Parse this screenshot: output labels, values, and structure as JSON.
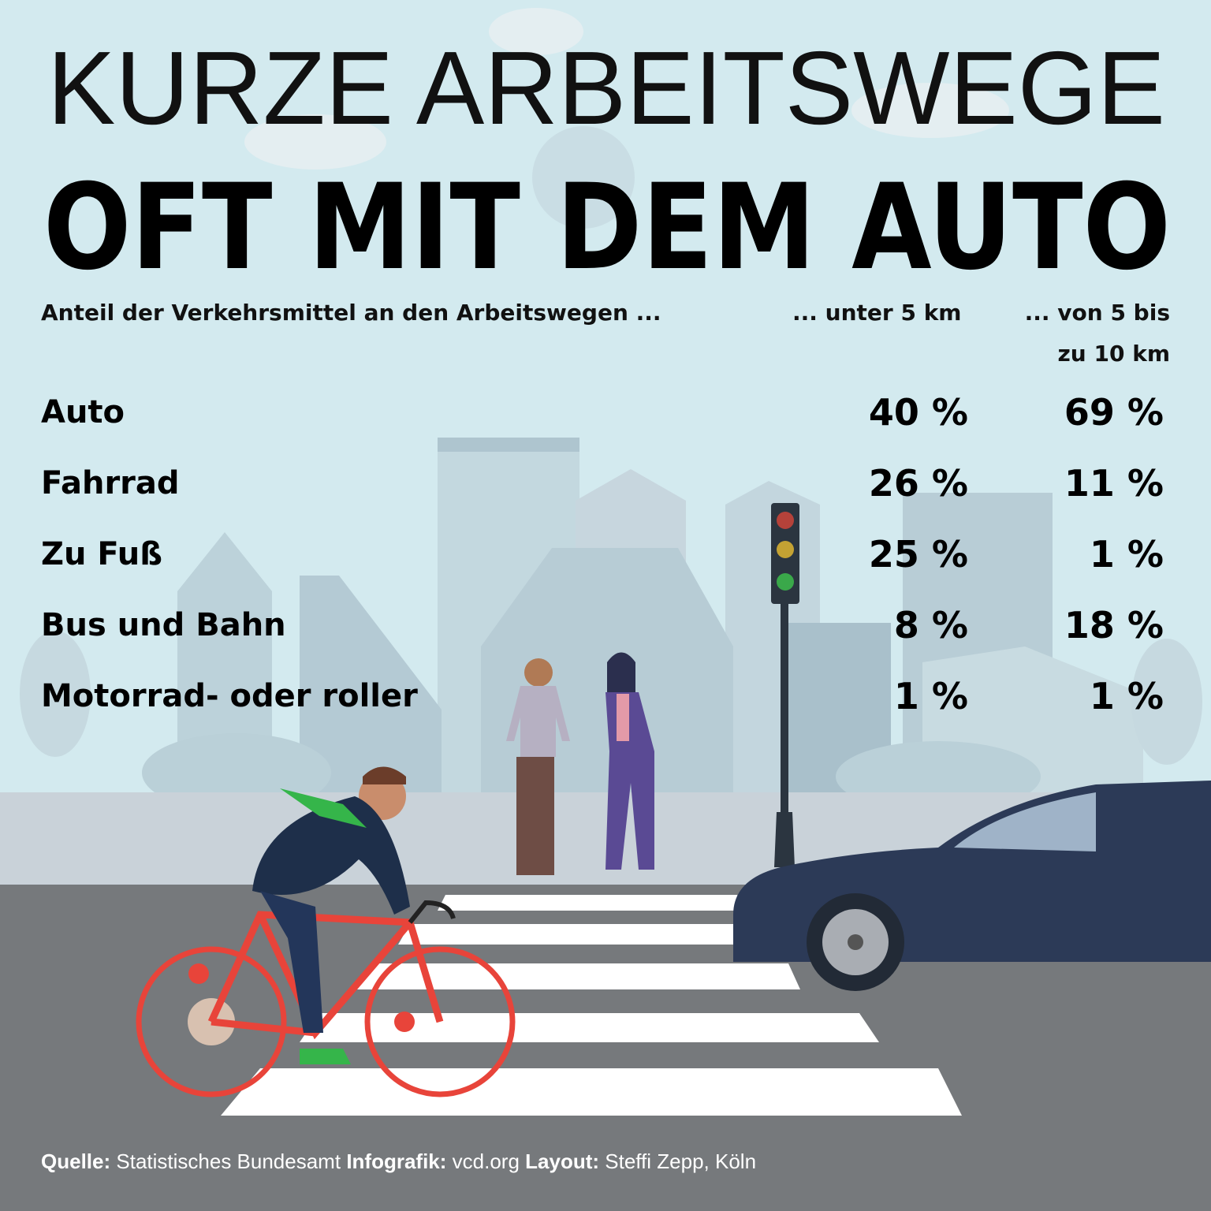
{
  "title": {
    "line1": "KURZE ARBEITSWEGE",
    "line2": "OFT MIT DEM AUTO"
  },
  "colors": {
    "sky": "#d3eaef",
    "road": "#76797c",
    "buildings": "#b9cfd8",
    "bike": "#e8443a",
    "car": "#2c3a57",
    "accent_green": "#35b54a"
  },
  "chart_data": {
    "type": "table",
    "title": "KURZE ARBEITSWEGE OFT MIT DEM AUTO",
    "row_header": "Anteil der Verkehrsmittel an den Arbeitswegen ...",
    "columns": [
      "... unter 5 km",
      "... von 5 bis zu 10 km"
    ],
    "column_label_lines": {
      "col1": "... unter 5 km",
      "col2_line1": "... von 5 bis",
      "col2_line2": "zu 10 km"
    },
    "unit": "%",
    "rows": [
      {
        "label": "Auto",
        "values": [
          40,
          69
        ],
        "display": [
          "40 %",
          "69 %"
        ]
      },
      {
        "label": "Fahrrad",
        "values": [
          26,
          11
        ],
        "display": [
          "26 %",
          "11 %"
        ]
      },
      {
        "label": "Zu Fuß",
        "values": [
          25,
          1
        ],
        "display": [
          "25 %",
          "1 %"
        ]
      },
      {
        "label": "Bus und Bahn",
        "values": [
          8,
          18
        ],
        "display": [
          "8 %",
          "18 %"
        ]
      },
      {
        "label": "Motorrad- oder roller",
        "values": [
          1,
          1
        ],
        "display": [
          "1 %",
          "1 %"
        ]
      }
    ]
  },
  "footer": {
    "source_label": "Quelle:",
    "source": "Statistisches Bundesamt",
    "infografik_label": "Infografik:",
    "infografik": "vcd.org",
    "layout_label": "Layout:",
    "layout": "Steffi Zepp, Köln"
  },
  "icons": [
    "traffic-light-icon",
    "bicycle-icon",
    "car-icon",
    "people-icon"
  ]
}
